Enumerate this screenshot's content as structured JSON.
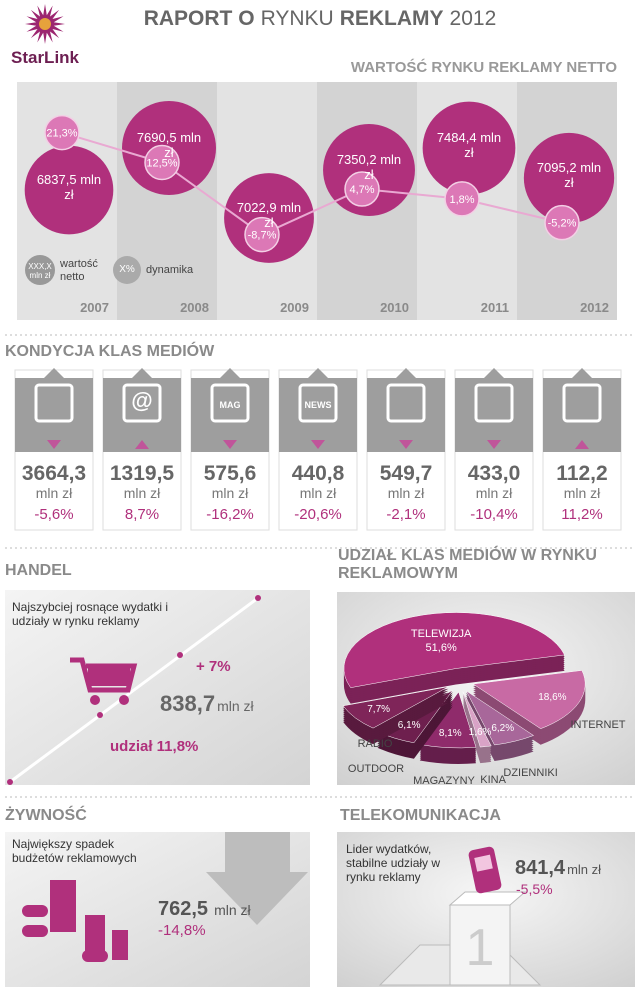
{
  "header": {
    "logo": "StarLink",
    "title_part1": "RAPORT O",
    "title_part2": "RYNKU",
    "title_part3": "REKLAMY",
    "title_part4": "2012"
  },
  "chart_data": [
    {
      "type": "bubble",
      "title": "WARTOŚĆ RYNKU REKLAMY NETTO",
      "categories": [
        "2007",
        "2008",
        "2009",
        "2010",
        "2011",
        "2012"
      ],
      "series": [
        {
          "name": "wartość netto",
          "color": "#b0307c",
          "values": [
            6837.5,
            7690.5,
            7022.9,
            7350.2,
            7484.4,
            7095.2
          ],
          "value_labels": [
            "6837,5 mln zł",
            "7690,5 mln zł",
            "7022,9 mln zł",
            "7350,2 mln zł",
            "7484,4 mln zł",
            "7095,2 mln zł"
          ]
        },
        {
          "name": "dynamika",
          "color": "#dc78b6",
          "values": [
            21.3,
            12.5,
            -8.7,
            4.7,
            1.8,
            -5.2
          ],
          "value_labels": [
            "21,3%",
            "12,5%",
            "-8,7%",
            "4,7%",
            "1,8%",
            "-5,2%"
          ]
        }
      ],
      "legend_samples": [
        "XXX,X mln zł",
        "X%"
      ]
    },
    {
      "type": "pie",
      "title": "UDZIAŁ KLAS MEDIÓW W RYNKU REKLAMOWYM",
      "categories": [
        "TELEWIZJA",
        "INTERNET",
        "DZIENNIKI",
        "KINA",
        "MAGAZYNY",
        "OUTDOOR",
        "RADIO"
      ],
      "values": [
        51.6,
        18.6,
        6.2,
        1.6,
        8.1,
        6.1,
        7.7
      ],
      "value_labels": [
        "51,6%",
        "18,6%",
        "6,2%",
        "1,6%",
        "8,1%",
        "6,1%",
        "7,7%"
      ],
      "colors": [
        "#b0307c",
        "#c86aa4",
        "#a8679a",
        "#d9a3c6",
        "#8f2b6b",
        "#6e1f4e",
        "#7f2559"
      ]
    }
  ],
  "media": {
    "title": "KONDYCJA KLAS MEDIÓW",
    "items": [
      {
        "value": "3664,3",
        "unit": "mln zł",
        "change": "-5,6%"
      },
      {
        "icon_text": "@",
        "value": "1319,5",
        "unit": "mln zł",
        "change": "8,7%"
      },
      {
        "icon_text": "MAG",
        "value": "575,6",
        "unit": "mln zł",
        "change": "-16,2%"
      },
      {
        "icon_text": "NEWS",
        "value": "440,8",
        "unit": "mln zł",
        "change": "-20,6%"
      },
      {
        "value": "549,7",
        "unit": "mln zł",
        "change": "-2,1%"
      },
      {
        "value": "433,0",
        "unit": "mln zł",
        "change": "-10,4%"
      },
      {
        "value": "112,2",
        "unit": "mln zł",
        "change": "11,2%"
      }
    ]
  },
  "handel": {
    "title": "HANDEL",
    "subtitle": "Najszybciej rosnące wydatki i udziały w rynku reklamy",
    "growth": "+ 7%",
    "value": "838,7",
    "unit": "mln zł",
    "share": "udział 11,8%"
  },
  "zywnosc": {
    "title": "ŻYWNOŚĆ",
    "subtitle": "Największy spadek budżetów reklamowych",
    "value": "762,5",
    "unit": "mln zł",
    "change": "-14,8%"
  },
  "telekomunikacja": {
    "title": "TELEKOMUNIKACJA",
    "subtitle": "Lider wydatków, stabilne udziały w rynku reklamy",
    "value": "841,4",
    "unit": "mln zł",
    "change": "-5,5%",
    "podium": "1"
  }
}
